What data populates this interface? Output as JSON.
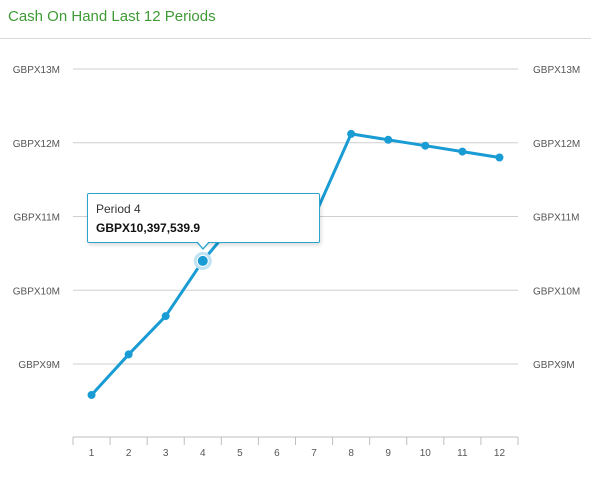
{
  "header": {
    "title": "Cash On Hand Last 12 Periods"
  },
  "tooltip": {
    "label": "Period 4",
    "value": "GBPX10,397,539.9"
  },
  "colors": {
    "line": "#199bd4",
    "title": "#3f9a36",
    "grid": "#cfcfcf"
  },
  "chart_data": {
    "type": "line",
    "title": "Cash On Hand Last 12 Periods",
    "categories": [
      "1",
      "2",
      "3",
      "4",
      "5",
      "6",
      "7",
      "8",
      "9",
      "10",
      "11",
      "12"
    ],
    "series": [
      {
        "values": [
          8.58,
          9.13,
          9.65,
          10.397539,
          11.0,
          11.06,
          10.99,
          12.12,
          12.04,
          11.96,
          11.88,
          11.8
        ]
      }
    ],
    "ylim": [
      8,
      13.5
    ],
    "yticks": [
      9,
      10,
      11,
      12,
      13
    ],
    "ytick_labels": [
      "GBPX9M",
      "GBPX10M",
      "GBPX11M",
      "GBPX12M",
      "GBPX13M"
    ],
    "grid": true,
    "dual_y_axis_labels": true,
    "highlighted_index": 3
  }
}
